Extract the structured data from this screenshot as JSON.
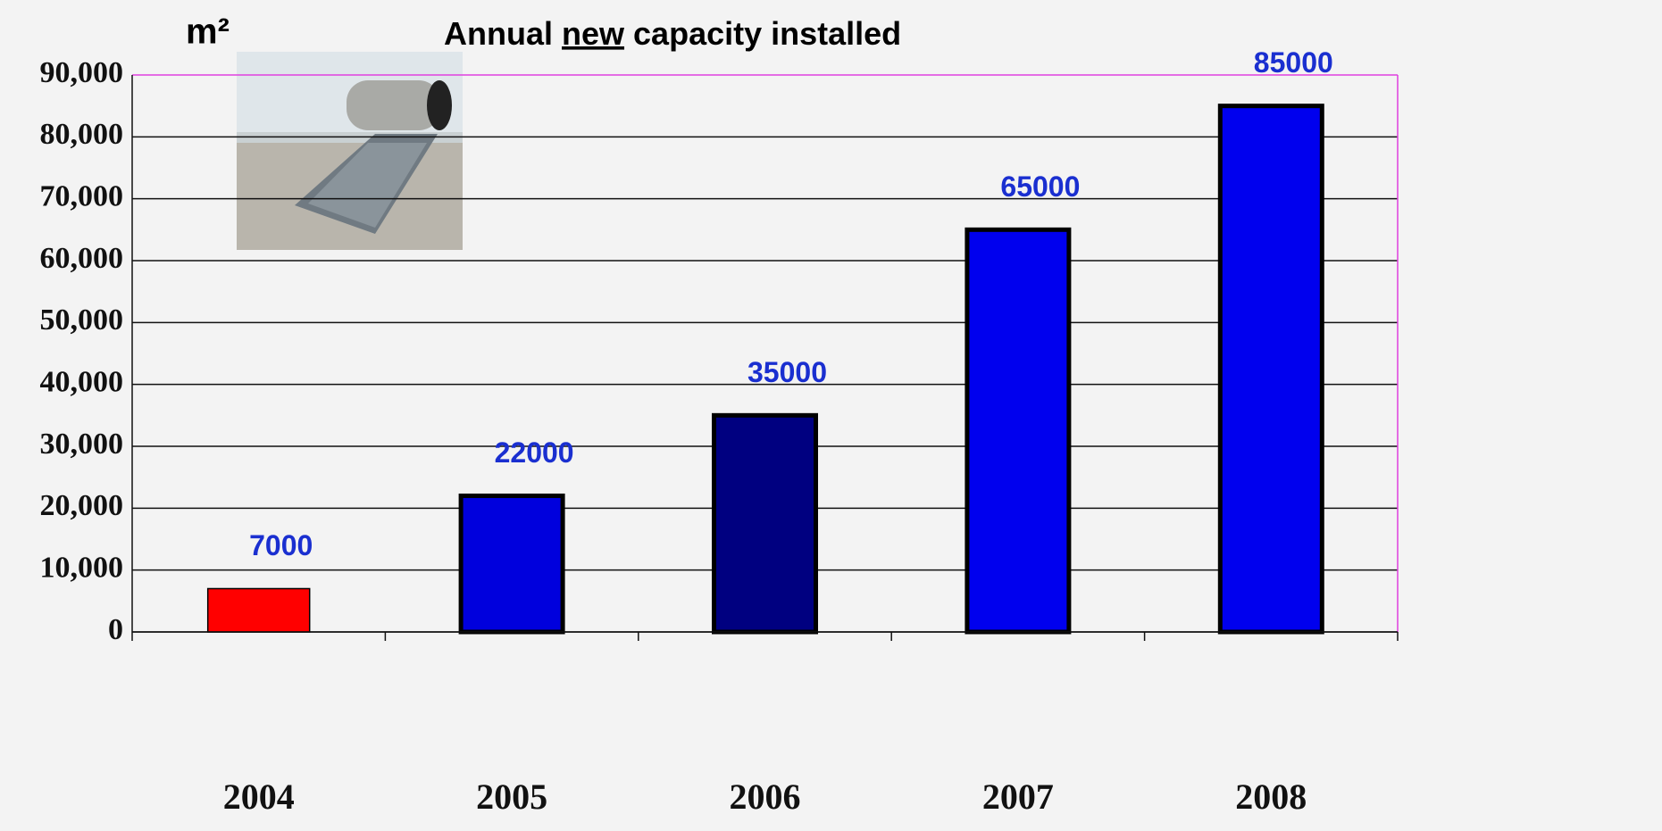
{
  "chart_data": {
    "type": "bar",
    "title": "Annual new capacity installed",
    "y_label": "m²",
    "categories": [
      "2004",
      "2005",
      "2006",
      "2007",
      "2008"
    ],
    "values": [
      7000,
      22000,
      35000,
      65000,
      85000
    ],
    "colors": [
      "#ff0000",
      "#0000dd",
      "#000080",
      "#0000ee",
      "#0000ee"
    ],
    "ylim": [
      0,
      90000
    ],
    "yticks": [
      0,
      {
        "value": 10000,
        "label": "10,000"
      },
      {
        "value": 20000,
        "label": "20,000"
      },
      {
        "value": 30000,
        "label": "30,000"
      },
      {
        "value": 40000,
        "label": "40,000"
      },
      {
        "value": 50000,
        "label": "50,000"
      },
      {
        "value": 60000,
        "label": "60,000"
      },
      {
        "value": 70000,
        "label": "70,000"
      },
      {
        "value": 80000,
        "label": "80,000"
      },
      {
        "value": 90000,
        "label": "90,000"
      }
    ],
    "grid": true
  }
}
